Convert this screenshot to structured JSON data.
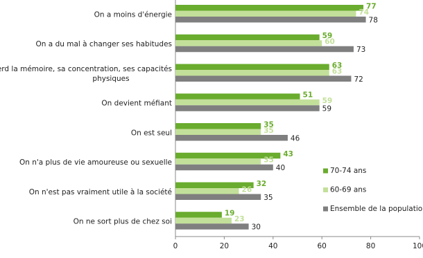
{
  "chart_data": {
    "type": "hbar",
    "categories": [
      "On a moins d'énergie",
      "On a du mal à changer ses habitudes",
      "On perd la mémoire, sa concentration, ses capacités physiques",
      "On devient méfiant",
      "On est seul",
      "On n'a plus de vie amoureuse ou sexuelle",
      "On n'est pas vraiment utile à la société",
      "On ne sort plus de chez soi"
    ],
    "series": [
      {
        "name": "70-74 ans",
        "color": "#6aac2e",
        "values": [
          77,
          59,
          63,
          51,
          35,
          43,
          32,
          19
        ]
      },
      {
        "name": "60-69 ans",
        "color": "#c3e09a",
        "values": [
          74,
          60,
          63,
          59,
          35,
          35,
          26,
          23
        ]
      },
      {
        "name": "Ensemble de la population",
        "color": "#7f7f7f",
        "values": [
          78,
          73,
          72,
          59,
          46,
          40,
          35,
          30
        ]
      }
    ],
    "xlim": [
      0,
      100
    ],
    "xticks": [
      0,
      20,
      40,
      60,
      80,
      100
    ],
    "grid": false,
    "legend": "lower right"
  }
}
